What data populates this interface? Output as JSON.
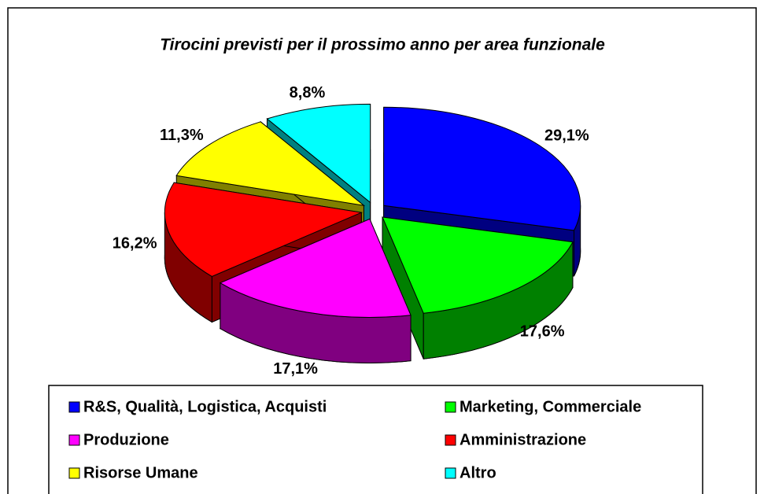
{
  "chart_data": {
    "type": "pie3d",
    "title": "Tirocini previsti per il prossimo anno per area funzionale",
    "categories": [
      "R&S, Qualità, Logistica, Acquisti",
      "Marketing, Commerciale",
      "Produzione",
      "Amministrazione",
      "Risorse Umane",
      "Altro"
    ],
    "values": [
      29.1,
      17.6,
      17.1,
      16.2,
      11.3,
      8.8
    ],
    "value_labels": [
      "29,1%",
      "17,6%",
      "17,1%",
      "16,2%",
      "11,3%",
      "8,8%"
    ],
    "colors": [
      "#0000ff",
      "#00ff00",
      "#ff00ff",
      "#ff0000",
      "#ffff00",
      "#00ffff"
    ],
    "side_colors": [
      "#000080",
      "#008000",
      "#800080",
      "#800000",
      "#808000",
      "#008080"
    ],
    "legend": "bottom"
  }
}
